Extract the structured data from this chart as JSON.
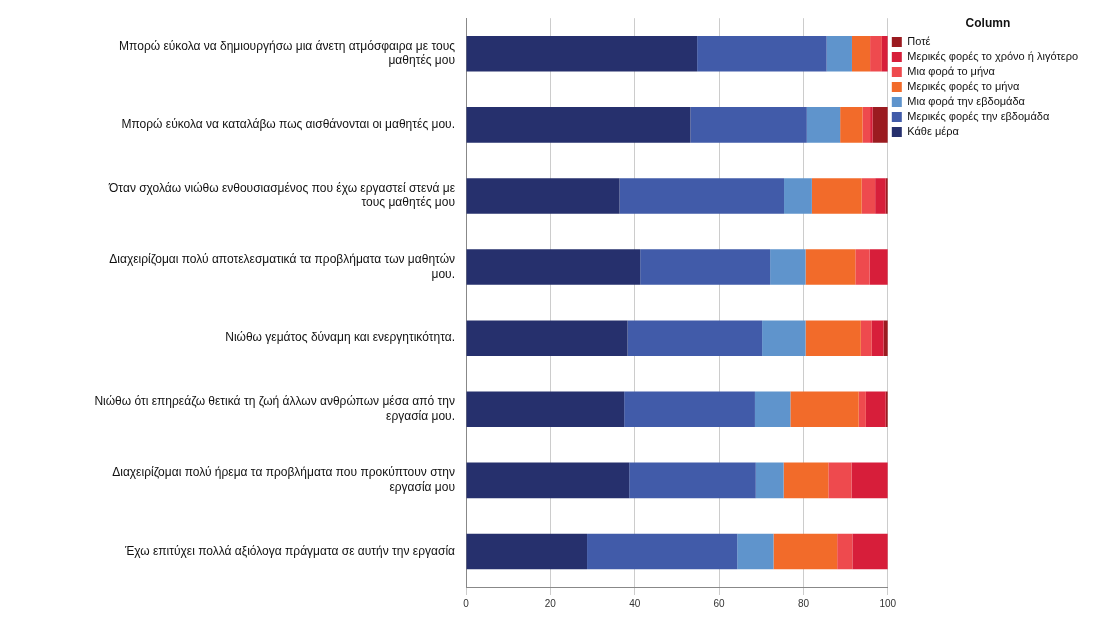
{
  "chart_data": {
    "type": "bar",
    "orientation": "horizontal",
    "stacked": true,
    "legend_title": "Column",
    "legend": "right",
    "grid": "x",
    "xlim": [
      0,
      100
    ],
    "xticks": [
      0,
      20,
      40,
      60,
      80,
      100
    ],
    "categories": [
      "Μπορώ εύκολα να δημιουργήσω μια άνετη ατμόσφαιρα με τους μαθητές μου",
      "Μπορώ εύκολα να καταλάβω πως αισθάνονται οι μαθητές μου.",
      "Όταν σχολάω νιώθω ενθουσιασμένος που έχω εργαστεί στενά με τους μαθητές μου",
      "Διαχειρίζομαι πολύ αποτελεσματικά τα προβλήματα των μαθητών μου.",
      "Νιώθω γεμάτος δύναμη και ενεργητικότητα.",
      "Νιώθω ότι επηρεάζω θετικά τη ζωή άλλων ανθρώπων μέσα από την εργασία μου.",
      "Διαχειρίζομαι πολύ ήρεμα τα προβλήματα που προκύπτουν στην εργασία μου",
      "Έχω επιτύχει πολλά αξιόλογα πράγματα σε αυτήν την εργασία"
    ],
    "series": [
      {
        "name": "Κάθε μέρα",
        "color": "#26306d",
        "values": [
          54.8,
          53.2,
          36.4,
          41.3,
          38.3,
          37.5,
          38.7,
          28.7
        ]
      },
      {
        "name": "Μερικές φορές την εβδομάδα",
        "color": "#415ba9",
        "values": [
          30.7,
          27.6,
          39.0,
          30.8,
          31.9,
          31.0,
          30.0,
          35.6
        ]
      },
      {
        "name": "Μια φορά την εβδομάδα",
        "color": "#5f94cc",
        "values": [
          6.0,
          7.9,
          6.6,
          8.4,
          10.3,
          8.4,
          6.6,
          8.6
        ]
      },
      {
        "name": "Μερικές φορές το μήνα",
        "color": "#f26b2a",
        "values": [
          4.3,
          5.3,
          11.8,
          11.8,
          13.1,
          16.2,
          10.6,
          15.1
        ]
      },
      {
        "name": "Μια φορά το μήνα",
        "color": "#ee4a4e",
        "values": [
          2.8,
          1.8,
          3.2,
          3.4,
          2.6,
          1.7,
          5.5,
          3.6
        ]
      },
      {
        "name": "Μερικές φορές το χρόνο ή λιγότερο",
        "color": "#d71e3a",
        "values": [
          1.4,
          0.6,
          2.5,
          4.3,
          2.8,
          4.7,
          8.6,
          8.4
        ]
      },
      {
        "name": "Ποτέ",
        "color": "#9b1b20",
        "values": [
          0,
          3.6,
          0.5,
          0,
          1.0,
          0.5,
          0,
          0
        ]
      }
    ]
  }
}
